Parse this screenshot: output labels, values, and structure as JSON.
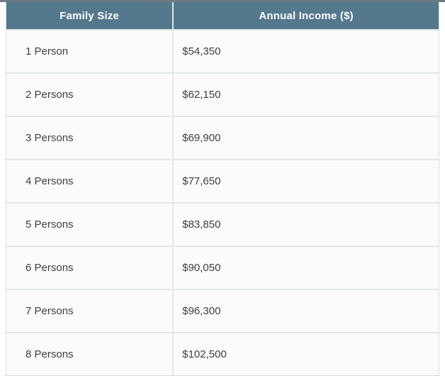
{
  "page": {
    "top_strip_color": "#6e7b83",
    "background_color": "#ffffff"
  },
  "table": {
    "columns": [
      {
        "label": "Family Size"
      },
      {
        "label": "Annual Income ($)"
      }
    ],
    "rows": [
      {
        "family_size": "1 Person",
        "annual_income": "$54,350"
      },
      {
        "family_size": "2 Persons",
        "annual_income": "$62,150"
      },
      {
        "family_size": "3 Persons",
        "annual_income": "$69,900"
      },
      {
        "family_size": "4 Persons",
        "annual_income": "$77,650"
      },
      {
        "family_size": "5 Persons",
        "annual_income": "$83,850"
      },
      {
        "family_size": "6 Persons",
        "annual_income": "$90,050"
      },
      {
        "family_size": "7 Persons",
        "annual_income": "$96,300"
      },
      {
        "family_size": "8 Persons",
        "annual_income": "$102,500"
      }
    ],
    "colors": {
      "header_background": "#54788c",
      "header_text": "#ffffff",
      "row_background": "#fbfbfb",
      "body_text": "#3d3f40",
      "border": "#e3e7e9"
    }
  }
}
